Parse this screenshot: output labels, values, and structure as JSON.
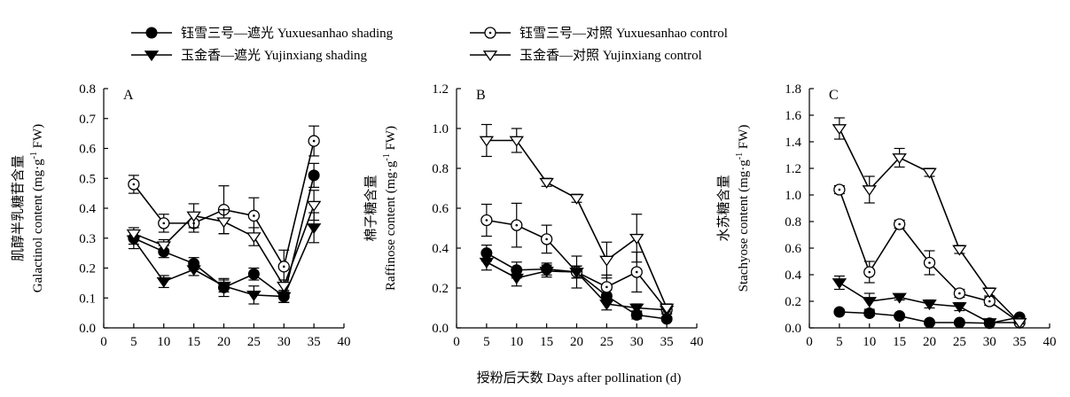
{
  "legend": {
    "items": [
      {
        "label": "钰雪三号—遮光 Yuxuesanhao shading",
        "marker": "filled-circle"
      },
      {
        "label": "钰雪三号—对照 Yuxuesanhao control",
        "marker": "open-circle-dot"
      },
      {
        "label": "玉金香—遮光 Yujinxiang shading",
        "marker": "filled-down-triangle"
      },
      {
        "label": "玉金香—对照 Yujinxiang control",
        "marker": "open-down-triangle"
      }
    ]
  },
  "xlabel": "授粉后天数 Days after pollination (d)",
  "chart_data": [
    {
      "type": "line",
      "panel_label": "A",
      "ylabel_cn": "肌醇半乳糖苷含量",
      "ylabel_en": "Galactinol content (mg·g",
      "ylabel_sup": "-1",
      "ylabel_tail": " FW)",
      "xlim": [
        0,
        40
      ],
      "ylim": [
        0,
        0.8
      ],
      "xticks": [
        0,
        5,
        10,
        15,
        20,
        25,
        30,
        35,
        40
      ],
      "yticks": [
        0,
        0.1,
        0.2,
        0.3,
        0.4,
        0.5,
        0.6,
        0.7,
        0.8
      ],
      "ytick_labels": [
        "0.0",
        "0.1",
        "0.2",
        "0.3",
        "0.4",
        "0.5",
        "0.6",
        "0.7",
        "0.8"
      ],
      "x": [
        5,
        10,
        15,
        20,
        25,
        30,
        35
      ],
      "series": [
        {
          "name": "钰雪三号—遮光 Yuxuesanhao shading",
          "marker": "filled-circle",
          "values": [
            0.3,
            0.255,
            0.215,
            0.135,
            0.18,
            0.105,
            0.51
          ],
          "err": [
            0.02,
            0.02,
            0.02,
            0.03,
            0.02,
            0.02,
            0.04
          ]
        },
        {
          "name": "钰雪三号—对照 Yuxuesanhao control",
          "marker": "open-circle-dot",
          "values": [
            0.48,
            0.35,
            0.35,
            0.395,
            0.375,
            0.205,
            0.625
          ],
          "err": [
            0.03,
            0.03,
            0.03,
            0.08,
            0.06,
            0.055,
            0.05
          ]
        },
        {
          "name": "玉金香—遮光 Yujinxiang shading",
          "marker": "filled-down-triangle",
          "values": [
            0.295,
            0.155,
            0.195,
            0.14,
            0.11,
            0.105,
            0.335
          ],
          "err": [
            0.03,
            0.02,
            0.02,
            0.02,
            0.03,
            0.02,
            0.05
          ]
        },
        {
          "name": "玉金香—对照 Yujinxiang control",
          "marker": "open-down-triangle",
          "values": [
            0.315,
            0.275,
            0.375,
            0.355,
            0.305,
            0.14,
            0.41
          ],
          "err": [
            0.02,
            0.02,
            0.04,
            0.04,
            0.03,
            0.02,
            0.05
          ]
        }
      ]
    },
    {
      "type": "line",
      "panel_label": "B",
      "ylabel_cn": "棉子糖含量",
      "ylabel_en": "Raffinose content (mg·g",
      "ylabel_sup": "-1",
      "ylabel_tail": " FW)",
      "xlim": [
        0,
        40
      ],
      "ylim": [
        0,
        1.2
      ],
      "xticks": [
        0,
        5,
        10,
        15,
        20,
        25,
        30,
        35,
        40
      ],
      "yticks": [
        0,
        0.2,
        0.4,
        0.6,
        0.8,
        1.0,
        1.2
      ],
      "ytick_labels": [
        "0.0",
        "0.2",
        "0.4",
        "0.6",
        "0.8",
        "1.0",
        "1.2"
      ],
      "x": [
        5,
        10,
        15,
        20,
        25,
        30,
        35
      ],
      "series": [
        {
          "name": "钰雪三号—遮光 Yuxuesanhao shading",
          "marker": "filled-circle",
          "values": [
            0.375,
            0.29,
            0.295,
            0.28,
            0.16,
            0.065,
            0.045
          ],
          "err": [
            0.04,
            0.04,
            0.03,
            0.03,
            0.03,
            0.02,
            0.01
          ]
        },
        {
          "name": "钰雪三号—对照 Yuxuesanhao control",
          "marker": "open-circle-dot",
          "values": [
            0.54,
            0.515,
            0.445,
            0.28,
            0.205,
            0.28,
            0.09
          ],
          "err": [
            0.08,
            0.11,
            0.07,
            0.08,
            0.06,
            0.1,
            0.02
          ]
        },
        {
          "name": "玉金香—遮光 Yujinxiang shading",
          "marker": "filled-down-triangle",
          "values": [
            0.33,
            0.25,
            0.285,
            0.28,
            0.12,
            0.1,
            0.09
          ],
          "err": [
            0.04,
            0.04,
            0.03,
            0.03,
            0.03,
            0.02,
            0.02
          ]
        },
        {
          "name": "玉金香—对照 Yujinxiang control",
          "marker": "open-down-triangle",
          "values": [
            0.94,
            0.94,
            0.73,
            0.65,
            0.34,
            0.45,
            0.1
          ],
          "err": [
            0.08,
            0.06,
            0.02,
            0.02,
            0.09,
            0.12,
            0.02
          ]
        }
      ]
    },
    {
      "type": "line",
      "panel_label": "C",
      "ylabel_cn": "水苏糖含量",
      "ylabel_en": "Stachyose content (mg·g",
      "ylabel_sup": "-1",
      "ylabel_tail": " FW)",
      "xlim": [
        0,
        40
      ],
      "ylim": [
        0,
        1.8
      ],
      "xticks": [
        0,
        5,
        10,
        15,
        20,
        25,
        30,
        35,
        40
      ],
      "yticks": [
        0,
        0.2,
        0.4,
        0.6,
        0.8,
        1.0,
        1.2,
        1.4,
        1.6,
        1.8
      ],
      "ytick_labels": [
        "0.0",
        "0.2",
        "0.4",
        "0.6",
        "0.8",
        "1.0",
        "1.2",
        "1.4",
        "1.6",
        "1.8"
      ],
      "x": [
        5,
        10,
        15,
        20,
        25,
        30,
        35
      ],
      "series": [
        {
          "name": "钰雪三号—遮光 Yuxuesanhao shading",
          "marker": "filled-circle",
          "values": [
            0.12,
            0.11,
            0.09,
            0.04,
            0.04,
            0.035,
            0.08
          ],
          "err": [
            0.01,
            0.02,
            0.01,
            0.01,
            0.01,
            0.01,
            0.01
          ]
        },
        {
          "name": "钰雪三号—对照 Yuxuesanhao control",
          "marker": "open-circle-dot",
          "values": [
            1.04,
            0.42,
            0.78,
            0.49,
            0.26,
            0.2,
            0.04
          ],
          "err": [
            0.03,
            0.08,
            0.03,
            0.09,
            0.03,
            0.03,
            0.01
          ]
        },
        {
          "name": "玉金香—遮光 Yujinxiang shading",
          "marker": "filled-down-triangle",
          "values": [
            0.34,
            0.2,
            0.23,
            0.18,
            0.16,
            0.04,
            0.04
          ],
          "err": [
            0.05,
            0.06,
            0.02,
            0.03,
            0.03,
            0.01,
            0.01
          ]
        },
        {
          "name": "玉金香—对照 Yujinxiang control",
          "marker": "open-down-triangle",
          "values": [
            1.5,
            1.04,
            1.28,
            1.17,
            0.59,
            0.27,
            0.04
          ],
          "err": [
            0.08,
            0.1,
            0.07,
            0.03,
            0.03,
            0.03,
            0.01
          ]
        }
      ]
    }
  ]
}
